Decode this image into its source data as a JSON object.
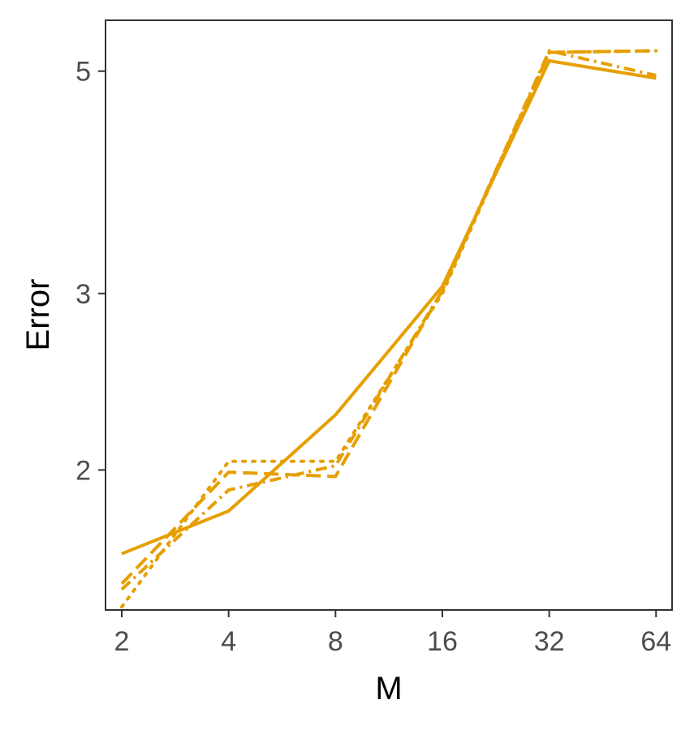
{
  "chart_data": {
    "type": "line",
    "xlabel": "M",
    "ylabel": "Error",
    "x_scale": "log2",
    "y_scale": "log",
    "x_ticks": [
      2,
      4,
      8,
      16,
      32,
      64
    ],
    "x_tick_labels": [
      "2",
      "4",
      "8",
      "16",
      "32",
      "64"
    ],
    "y_ticks": [
      2,
      3,
      5
    ],
    "y_tick_labels": [
      "2",
      "3",
      "5"
    ],
    "xlim": [
      1.8,
      71
    ],
    "ylim": [
      1.45,
      5.62
    ],
    "grid": false,
    "line_color": "#E69F00",
    "series": [
      {
        "dash": "solid",
        "x": [
          2,
          4,
          8,
          16,
          32,
          64
        ],
        "y": [
          1.65,
          1.82,
          2.27,
          3.05,
          5.12,
          4.92
        ]
      },
      {
        "dash": "dotted",
        "x": [
          2,
          4,
          8,
          16,
          32,
          64
        ],
        "y": [
          1.46,
          2.04,
          2.04,
          3.0,
          5.22,
          5.24
        ]
      },
      {
        "dash": "dashed",
        "x": [
          2,
          4,
          8,
          16,
          32,
          64
        ],
        "y": [
          1.54,
          1.99,
          1.97,
          3.02,
          5.22,
          5.24
        ]
      },
      {
        "dash": "dashdot",
        "x": [
          2,
          4,
          8,
          16,
          32,
          64
        ],
        "y": [
          1.52,
          1.91,
          2.02,
          3.02,
          5.24,
          4.95
        ]
      }
    ]
  }
}
